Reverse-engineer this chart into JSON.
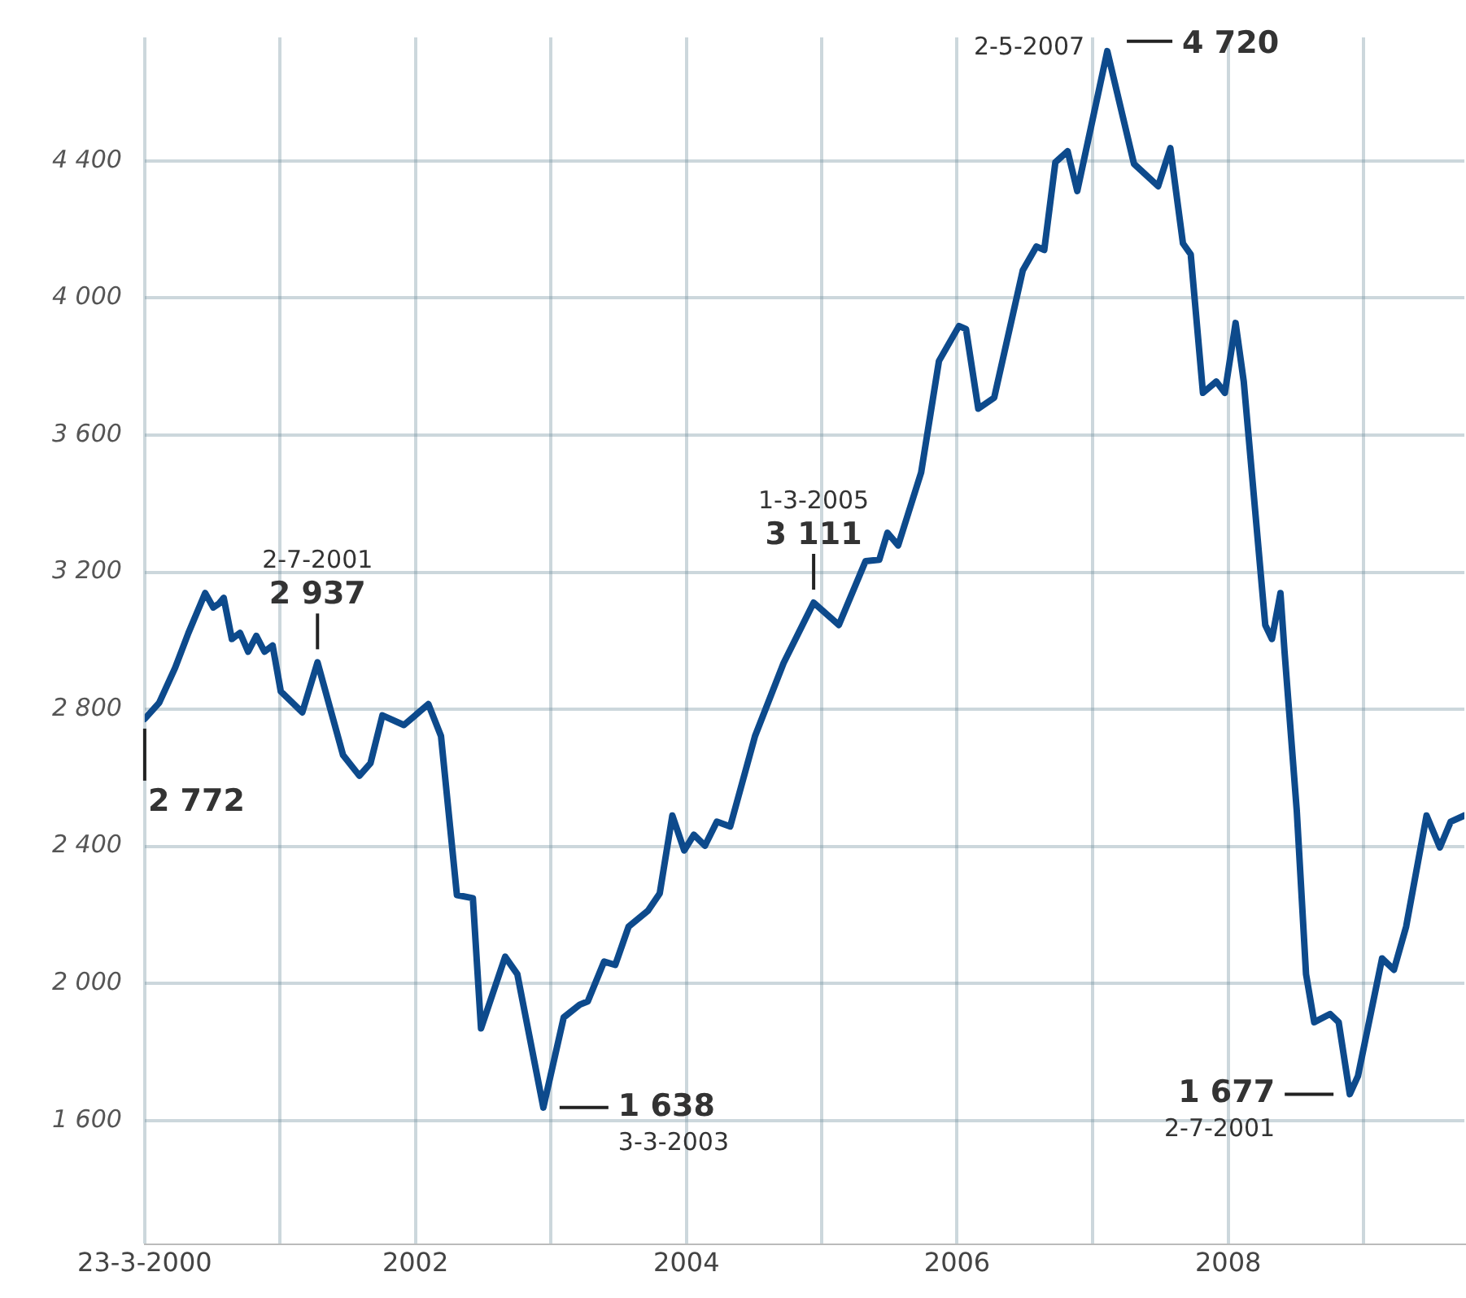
{
  "chart_data": {
    "type": "line",
    "x": [
      "2000-03-23",
      "2000-05-01",
      "2000-06-13",
      "2000-07-19",
      "2000-09-02",
      "2000-09-24",
      "2000-10-08",
      "2000-10-22",
      "2000-11-13",
      "2000-12-05",
      "2000-12-27",
      "2001-01-18",
      "2001-02-09",
      "2001-03-03",
      "2001-03-25",
      "2001-05-22",
      "2001-07-02",
      "2001-09-09",
      "2001-10-23",
      "2001-11-22",
      "2001-12-24",
      "2002-02-20",
      "2002-04-27",
      "2002-05-31",
      "2002-07-13",
      "2002-08-25",
      "2002-09-16",
      "2002-11-20",
      "2002-12-23",
      "2003-03-03",
      "2003-04-27",
      "2003-06-09",
      "2003-07-01",
      "2003-08-14",
      "2003-09-13",
      "2003-10-19",
      "2003-12-10",
      "2004-01-11",
      "2004-02-14",
      "2004-03-17",
      "2004-04-12",
      "2004-05-12",
      "2004-06-13",
      "2004-07-19",
      "2004-09-24",
      "2004-12-10",
      "2005-03-01",
      "2005-05-08",
      "2005-07-19",
      "2005-08-25",
      "2005-09-16",
      "2005-10-15",
      "2005-12-16",
      "2006-02-02",
      "2006-03-28",
      "2006-04-16",
      "2006-05-19",
      "2006-07-01",
      "2006-09-16",
      "2006-10-23",
      "2006-11-13",
      "2006-12-13",
      "2007-01-15",
      "2007-02-10",
      "2007-05-02",
      "2007-07-13",
      "2007-09-16",
      "2007-10-19",
      "2007-11-22",
      "2007-12-13",
      "2008-01-15",
      "2008-02-20",
      "2008-03-14",
      "2008-04-12",
      "2008-05-04",
      "2008-07-01",
      "2008-07-19",
      "2008-08-11",
      "2008-08-22",
      "2008-09-24",
      "2008-10-19",
      "2008-11-10",
      "2008-12-23",
      "2009-01-15",
      "2009-02-14",
      "2009-03-08",
      "2009-05-12",
      "2009-06-13",
      "2009-07-16",
      "2009-09-09",
      "2009-10-15",
      "2009-11-13",
      "2009-12-20"
    ],
    "series": [
      {
        "color": "#0d4a8c",
        "values": [
          2772,
          2819,
          2921,
          3023,
          3139,
          3097,
          3107,
          3125,
          3005,
          3023,
          2968,
          3014,
          2968,
          2986,
          2852,
          2791,
          2937,
          2666,
          2606,
          2643,
          2782,
          2754,
          2815,
          2722,
          2258,
          2249,
          1869,
          2078,
          2027,
          1638,
          1901,
          1938,
          1948,
          2064,
          2054,
          2166,
          2212,
          2263,
          2490,
          2388,
          2434,
          2402,
          2472,
          2458,
          2722,
          2935,
          3111,
          3046,
          3232,
          3236,
          3315,
          3278,
          3491,
          3816,
          3918,
          3909,
          3677,
          3709,
          4080,
          4150,
          4140,
          4396,
          4428,
          4312,
          4720,
          4391,
          4326,
          4437,
          4159,
          4127,
          3723,
          3756,
          3723,
          3927,
          3756,
          3046,
          3005,
          3139,
          2968,
          2504,
          2027,
          1887,
          1911,
          1887,
          1677,
          1730,
          2073,
          2040,
          2166,
          2490,
          2397,
          2472,
          2490
        ]
      }
    ],
    "xlim": [
      "2000-03-23",
      "2009-12-20"
    ],
    "xticks": [
      {
        "value": "2000-03-23",
        "label": "23-3-2000"
      },
      {
        "value": "2001-03-23",
        "label": null
      },
      {
        "value": "2002-03-23",
        "label": "2002"
      },
      {
        "value": "2003-03-23",
        "label": null
      },
      {
        "value": "2004-03-23",
        "label": "2004"
      },
      {
        "value": "2005-03-23",
        "label": null
      },
      {
        "value": "2006-03-23",
        "label": "2006"
      },
      {
        "value": "2007-03-23",
        "label": null
      },
      {
        "value": "2008-03-23",
        "label": "2008"
      },
      {
        "value": "2009-03-23",
        "label": null
      }
    ],
    "ylim": [
      1240,
      4760
    ],
    "yticks": [
      {
        "value": 1600,
        "label": "1 600"
      },
      {
        "value": 2000,
        "label": "2 000"
      },
      {
        "value": 2400,
        "label": "2 400"
      },
      {
        "value": 2800,
        "label": "2 800"
      },
      {
        "value": 3200,
        "label": "3 200"
      },
      {
        "value": 3600,
        "label": "3 600"
      },
      {
        "value": 4000,
        "label": "4 000"
      },
      {
        "value": 4400,
        "label": "4 400"
      }
    ],
    "grid": true,
    "legend": false,
    "annotations": [
      {
        "text": "2 772",
        "x": "2000-03-23",
        "y": 2772
      },
      {
        "text": "2 937",
        "x": "2001-07-02",
        "y": 2937
      },
      "2-7-2001",
      {
        "text": "1 638",
        "x": "2003-03-03",
        "y": 1638
      },
      "3-3-2003",
      {
        "text": "3 111",
        "x": "2005-03-01",
        "y": 3111
      },
      "1-3-2005",
      {
        "text": "4 720",
        "x": "2007-05-02",
        "y": 4720
      },
      "2-5-2007",
      {
        "text": "1 677",
        "x": "2009-02-14",
        "y": 1677
      },
      "2-7-2001"
    ]
  }
}
